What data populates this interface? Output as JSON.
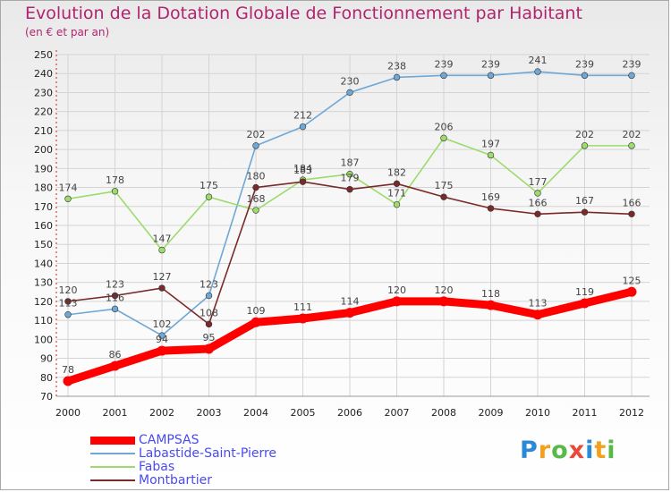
{
  "title": "Evolution de la Dotation Globale de Fonctionnement par Habitant",
  "subtitle": "(en € et par an)",
  "logo": {
    "text": "Proxiti",
    "colors": [
      "#2b8ad7",
      "#f3a11c",
      "#59b947",
      "#e84a3a"
    ]
  },
  "chart_data": {
    "type": "line",
    "title": "Evolution de la Dotation Globale de Fonctionnement par Habitant",
    "subtitle": "(en € et par an)",
    "x": [
      "2000",
      "2001",
      "2002",
      "2003",
      "2004",
      "2005",
      "2006",
      "2007",
      "2008",
      "2009",
      "2010",
      "2011",
      "2012"
    ],
    "ylim": [
      70,
      250
    ],
    "yticks": [
      70,
      80,
      90,
      100,
      110,
      120,
      130,
      140,
      150,
      160,
      170,
      180,
      190,
      200,
      210,
      220,
      230,
      240,
      250
    ],
    "grid": true,
    "legend_position": "bottom-left",
    "series": [
      {
        "name": "CAMPSAS",
        "color": "#ff0000",
        "values": [
          78,
          86,
          94,
          95,
          109,
          111,
          114,
          120,
          120,
          118,
          113,
          119,
          125
        ]
      },
      {
        "name": "Labastide-Saint-Pierre",
        "color": "#6fa7d6",
        "values": [
          113,
          116,
          102,
          123,
          202,
          212,
          230,
          238,
          239,
          239,
          241,
          239,
          239
        ]
      },
      {
        "name": "Fabas",
        "color": "#9ddc6c",
        "values": [
          174,
          178,
          147,
          175,
          168,
          184,
          187,
          171,
          206,
          197,
          177,
          202,
          202
        ]
      },
      {
        "name": "Montbartier",
        "color": "#7a2a2a",
        "values": [
          120,
          123,
          127,
          108,
          180,
          183,
          179,
          182,
          175,
          169,
          166,
          167,
          166
        ]
      }
    ]
  }
}
